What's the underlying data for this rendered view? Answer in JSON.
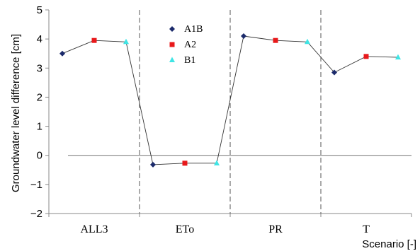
{
  "chart_data": {
    "type": "line",
    "xlabel": "Scenario [-]",
    "ylabel": "Groundwater level difference [cm]",
    "ylim": [
      -2,
      5
    ],
    "yticks": [
      -2,
      -1,
      0,
      1,
      2,
      3,
      4,
      5
    ],
    "categories": [
      "ALL3",
      "ETo",
      "PR",
      "T"
    ],
    "series": [
      {
        "name": "A1B",
        "values": [
          3.5,
          -0.32,
          4.1,
          2.85
        ],
        "color": "#1b2a6b",
        "marker": "diamond"
      },
      {
        "name": "A2",
        "values": [
          3.95,
          -0.27,
          3.95,
          3.4
        ],
        "color": "#e8191b",
        "marker": "square"
      },
      {
        "name": "B1",
        "values": [
          3.9,
          -0.27,
          3.9,
          3.37
        ],
        "color": "#3fe5e5",
        "marker": "triangle"
      }
    ],
    "legend_position": "top-left-inside",
    "grid": false,
    "zero_line": true,
    "category_separators": "dashed"
  }
}
